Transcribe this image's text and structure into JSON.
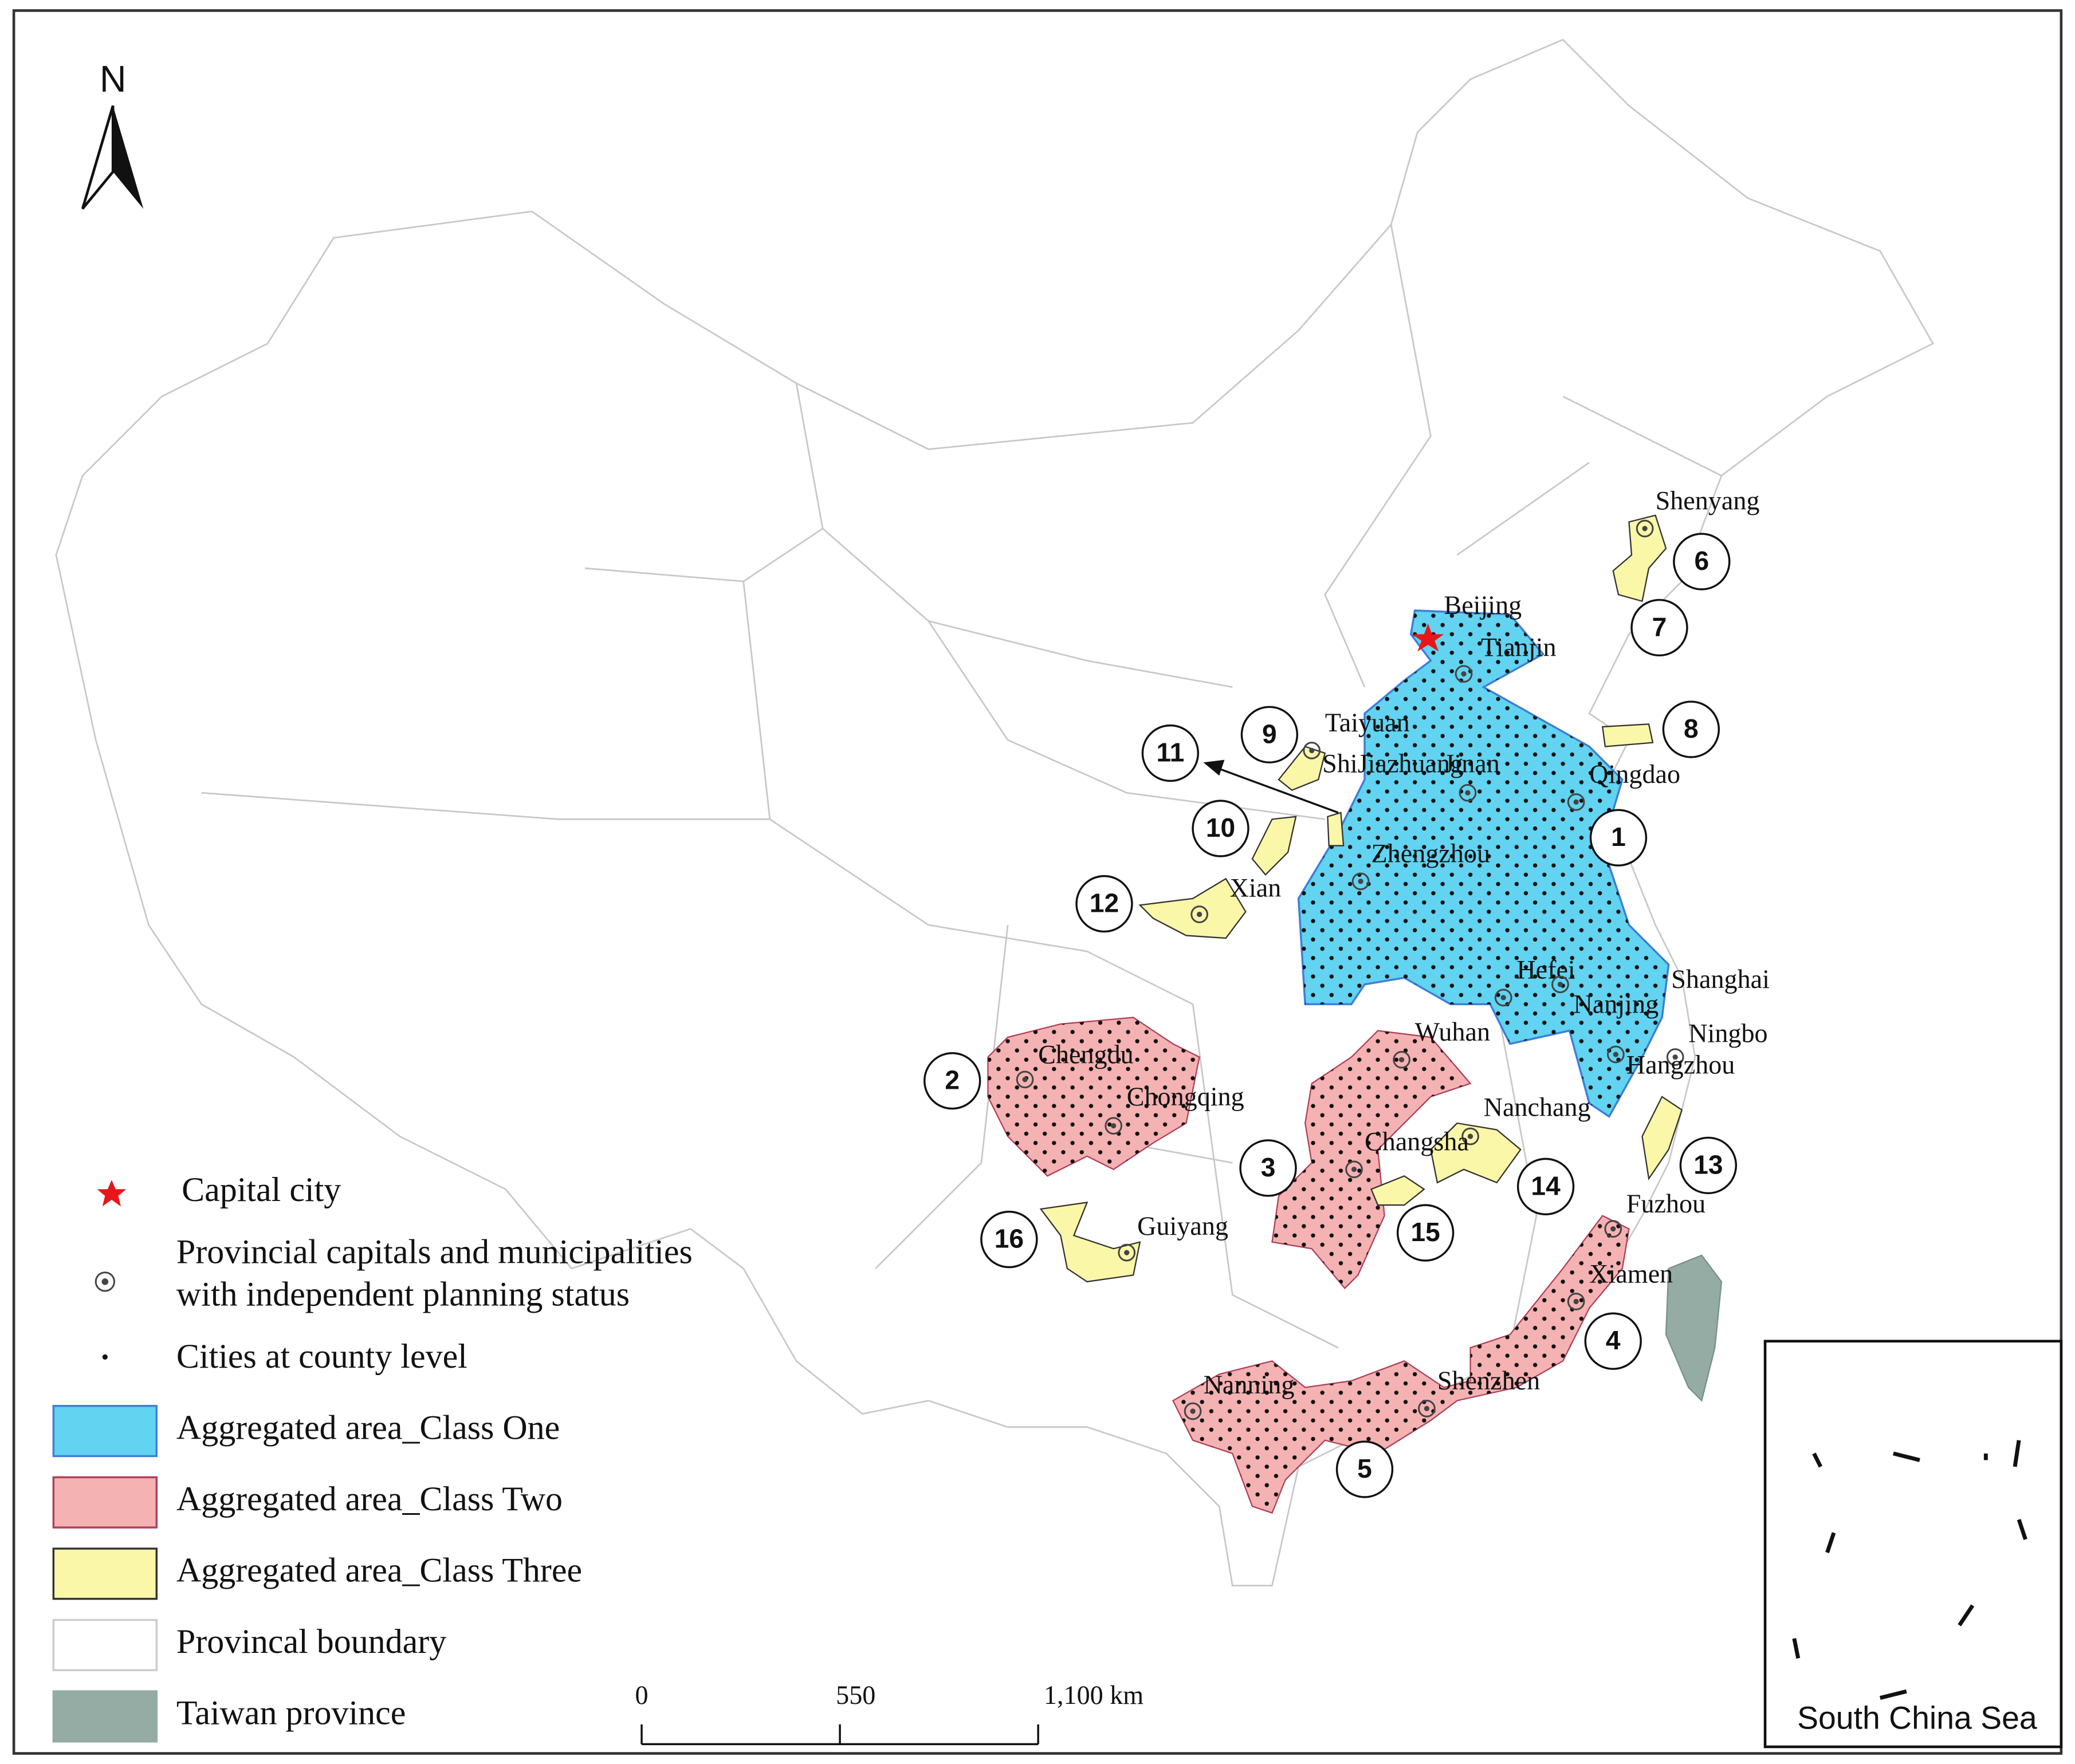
{
  "north_arrow": "N",
  "cities": [
    "Shenyang",
    "Beijing",
    "Tianjin",
    "Taiyuan",
    "ShiJiazhuang",
    "Jinan",
    "Qingdao",
    "Zhengzhou",
    "Xian",
    "Hefei",
    "Shanghai",
    "Nanjing",
    "Ningbo",
    "Hangzhou",
    "Wuhan",
    "Nanchang",
    "Changsha",
    "Chengdu",
    "Chongqing",
    "Guiyang",
    "Fuzhou",
    "Xiamen",
    "Shenzhen",
    "Nanning"
  ],
  "region_labels": [
    "1",
    "2",
    "3",
    "4",
    "5",
    "6",
    "7",
    "8",
    "9",
    "10",
    "11",
    "12",
    "13",
    "14",
    "15",
    "16"
  ],
  "legend": [
    {
      "lines": [
        "Capital city"
      ]
    },
    {
      "lines": [
        "Provincial capitals and municipalities",
        "with independent planning status"
      ]
    },
    {
      "lines": [
        "Cities at county level"
      ]
    },
    {
      "lines": [
        "Aggregated area_Class One"
      ]
    },
    {
      "lines": [
        "Aggregated area_Class Two"
      ]
    },
    {
      "lines": [
        "Aggregated area_Class Three"
      ]
    },
    {
      "lines": [
        "Provincal boundary"
      ]
    },
    {
      "lines": [
        "Taiwan province"
      ]
    }
  ],
  "scale_bar": [
    "0",
    "550",
    "1,100 km"
  ],
  "inset_title": "South China Sea"
}
